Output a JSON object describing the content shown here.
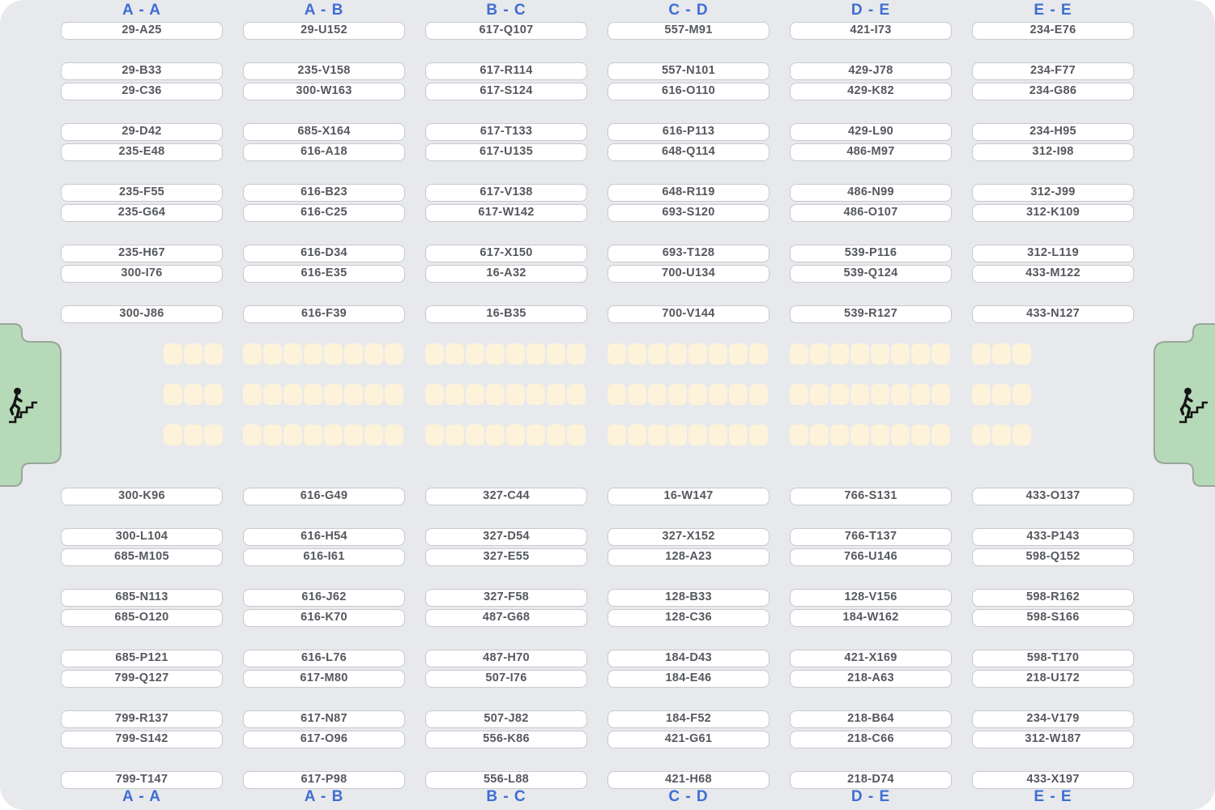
{
  "colors": {
    "background": "#e8e9ec",
    "box_fill": "#ffffff",
    "box_border": "#c8c9cc",
    "box_text": "#55585e",
    "header_blue": "#3d6ed3",
    "seat_fill": "#fcf3da",
    "stair_fill": "#b6d9b8",
    "stair_border": "#9aa69c",
    "icon_black": "#141414"
  },
  "stairs": {
    "left": {
      "icon": "person-climbing-stairs"
    },
    "right": {
      "icon": "person-climbing-stairs"
    }
  },
  "columns": [
    {
      "header": "A - A",
      "footer": "A - A",
      "seats_per_row": 3,
      "seat_align": "right",
      "shelves": [
        "29-A25",
        "29-B33",
        "29-C36",
        "29-D42",
        "235-E48",
        "235-F55",
        "235-G64",
        "235-H67",
        "300-I76",
        "300-J86",
        "300-K96",
        "300-L104",
        "685-M105",
        "685-N113",
        "685-O120",
        "685-P121",
        "799-Q127",
        "799-R137",
        "799-S142",
        "799-T147"
      ]
    },
    {
      "header": "A - B",
      "footer": "A - B",
      "seats_per_row": 8,
      "seat_align": "full",
      "shelves": [
        "29-U152",
        "235-V158",
        "300-W163",
        "685-X164",
        "616-A18",
        "616-B23",
        "616-C25",
        "616-D34",
        "616-E35",
        "616-F39",
        "616-G49",
        "616-H54",
        "616-I61",
        "616-J62",
        "616-K70",
        "616-L76",
        "617-M80",
        "617-N87",
        "617-O96",
        "617-P98"
      ]
    },
    {
      "header": "B - C",
      "footer": "B - C",
      "seats_per_row": 8,
      "seat_align": "full",
      "shelves": [
        "617-Q107",
        "617-R114",
        "617-S124",
        "617-T133",
        "617-U135",
        "617-V138",
        "617-W142",
        "617-X150",
        "16-A32",
        "16-B35",
        "327-C44",
        "327-D54",
        "327-E55",
        "327-F58",
        "487-G68",
        "487-H70",
        "507-I76",
        "507-J82",
        "556-K86",
        "556-L88"
      ]
    },
    {
      "header": "C - D",
      "footer": "C - D",
      "seats_per_row": 8,
      "seat_align": "full",
      "shelves": [
        "557-M91",
        "557-N101",
        "616-O110",
        "616-P113",
        "648-Q114",
        "648-R119",
        "693-S120",
        "693-T128",
        "700-U134",
        "700-V144",
        "16-W147",
        "327-X152",
        "128-A23",
        "128-B33",
        "128-C36",
        "184-D43",
        "184-E46",
        "184-F52",
        "421-G61",
        "421-H68"
      ]
    },
    {
      "header": "D - E",
      "footer": "D - E",
      "seats_per_row": 8,
      "seat_align": "full",
      "shelves": [
        "421-I73",
        "429-J78",
        "429-K82",
        "429-L90",
        "486-M97",
        "486-N99",
        "486-O107",
        "539-P116",
        "539-Q124",
        "539-R127",
        "766-S131",
        "766-T137",
        "766-U146",
        "128-V156",
        "184-W162",
        "421-X169",
        "218-A63",
        "218-B64",
        "218-C66",
        "218-D74"
      ]
    },
    {
      "header": "E - E",
      "footer": "E - E",
      "seats_per_row": 3,
      "seat_align": "left",
      "shelves": [
        "234-E76",
        "234-F77",
        "234-G86",
        "234-H95",
        "312-I98",
        "312-J99",
        "312-K109",
        "312-L119",
        "433-M122",
        "433-N127",
        "433-O137",
        "433-P143",
        "598-Q152",
        "598-R162",
        "598-S166",
        "598-T170",
        "218-U172",
        "234-V179",
        "312-W187",
        "433-X197"
      ]
    }
  ]
}
